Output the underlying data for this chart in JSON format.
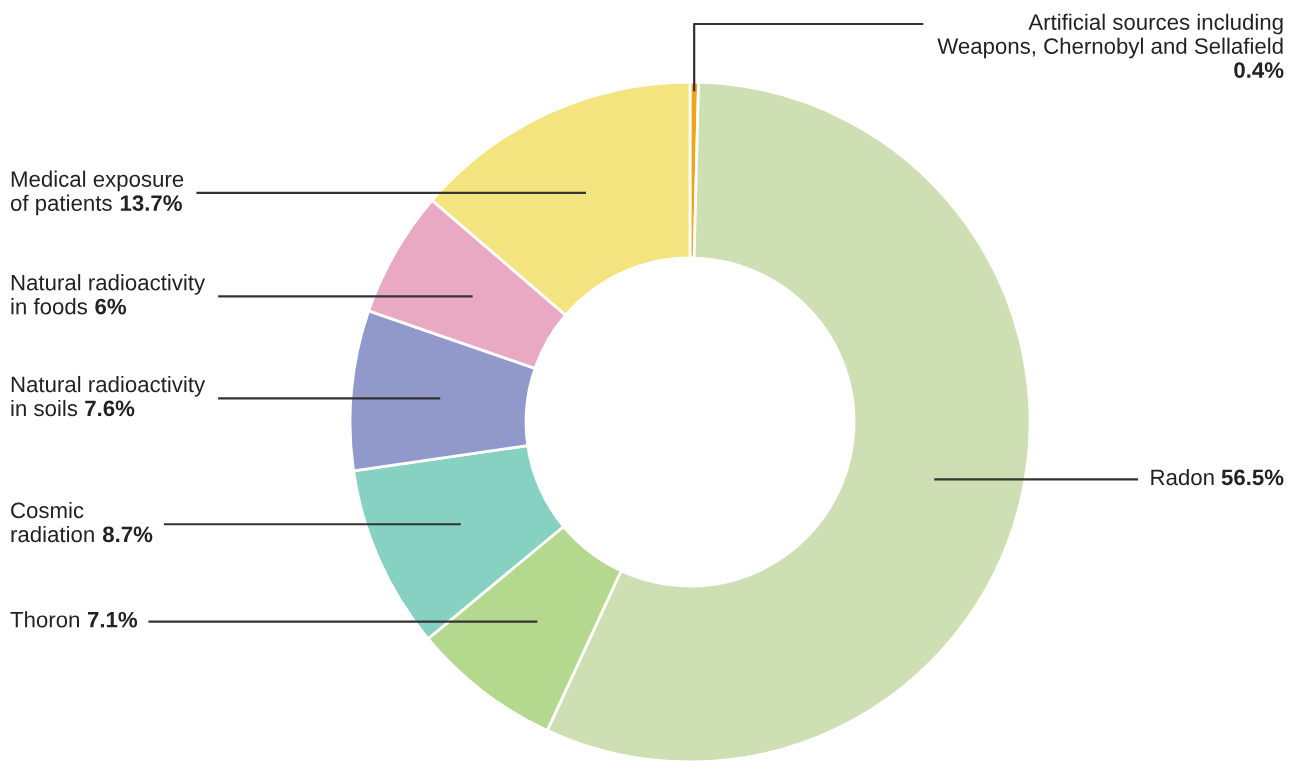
{
  "chart_data": {
    "type": "donut",
    "categories": [
      "Artificial sources including\nWeapons, Chernobyl and Sellafield",
      "Radon",
      "Thoron",
      "Cosmic\nradiation",
      "Natural radioactivity\nin soils",
      "Natural radioactivity\nin foods",
      "Medical exposure\nof patients"
    ],
    "values": [
      0.4,
      56.5,
      7.1,
      8.7,
      7.6,
      6,
      13.7
    ],
    "value_labels": [
      "0.4%",
      "56.5%",
      "7.1%",
      "8.7%",
      "7.6%",
      "6%",
      "13.7%"
    ],
    "colors": [
      "#f0a418",
      "#cfdfb4",
      "#b4d98e",
      "#86d1c1",
      "#9199cb",
      "#e9a9c2",
      "#f4e47f"
    ],
    "legend": false
  }
}
